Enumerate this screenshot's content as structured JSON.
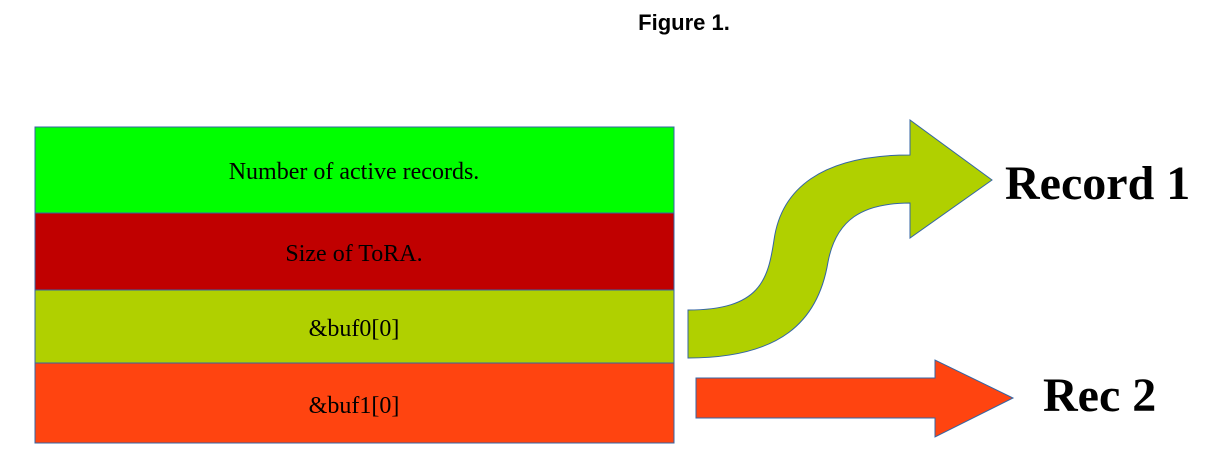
{
  "header": {
    "title": "Figure 1."
  },
  "table": {
    "rows": [
      "Number of active records.",
      "Size of ToRA.",
      "&buf0[0]",
      "&buf1[0]"
    ]
  },
  "arrows": [
    {
      "label": "Record 1"
    },
    {
      "label": "Rec 2"
    }
  ]
}
